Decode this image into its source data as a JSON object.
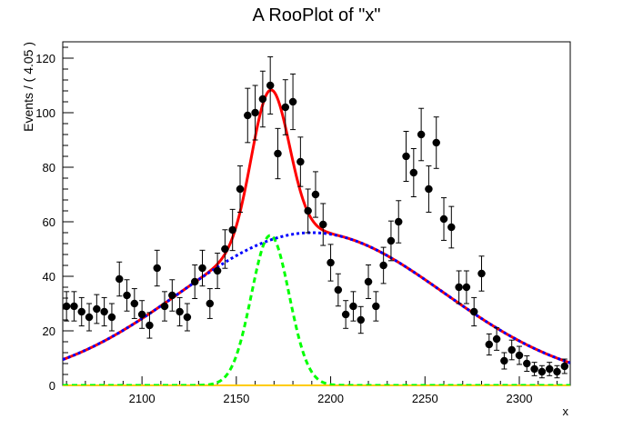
{
  "chart_data": {
    "type": "scatter",
    "title": "A RooPlot of \"x\"",
    "xlabel": "x",
    "ylabel": "Events / ( 4.05 )",
    "xlim": [
      2058,
      2327
    ],
    "ylim": [
      0,
      126
    ],
    "x_ticks": [
      2100,
      2150,
      2200,
      2250,
      2300
    ],
    "y_ticks": [
      0,
      20,
      40,
      60,
      80,
      100,
      120
    ],
    "grid": false,
    "legend": "none",
    "points": {
      "x": [
        2060,
        2064,
        2068,
        2072,
        2076,
        2080,
        2084,
        2088,
        2092,
        2096,
        2100,
        2104,
        2108,
        2112,
        2116,
        2120,
        2124,
        2128,
        2132,
        2136,
        2140,
        2144,
        2148,
        2152,
        2156,
        2160,
        2164,
        2168,
        2172,
        2176,
        2180,
        2184,
        2188,
        2192,
        2196,
        2200,
        2204,
        2208,
        2212,
        2216,
        2220,
        2224,
        2228,
        2232,
        2236,
        2240,
        2244,
        2248,
        2252,
        2256,
        2260,
        2264,
        2268,
        2272,
        2276,
        2280,
        2284,
        2288,
        2292,
        2296,
        2300,
        2304,
        2308,
        2312,
        2316,
        2320,
        2324
      ],
      "y": [
        29,
        29,
        27,
        25,
        28,
        27,
        25,
        39,
        33,
        30,
        26,
        22,
        43,
        29,
        33,
        27,
        25,
        38,
        43,
        30,
        42,
        50,
        57,
        72,
        99,
        100,
        105,
        110,
        85,
        102,
        104,
        82,
        64,
        70,
        59,
        45,
        35,
        26,
        29,
        24,
        38,
        29,
        44,
        53,
        60,
        84,
        78,
        92,
        72,
        89,
        61,
        58,
        36,
        36,
        27,
        41,
        15,
        17,
        9,
        13,
        11,
        8,
        6,
        5,
        6,
        5,
        7
      ]
    },
    "series": [
      {
        "name": "total",
        "color": "#ff0000",
        "style": "solid",
        "mean": 2168,
        "sigma": 10,
        "sig_amp": 55,
        "bkg_mean": 2190,
        "bkg_sigma": 70,
        "bkg_amp": 56
      },
      {
        "name": "background",
        "color": "#0000ff",
        "style": "dotted",
        "mean": 2190,
        "sigma": 70,
        "amp": 56
      },
      {
        "name": "signal",
        "color": "#00ff00",
        "style": "dashed",
        "mean": 2168,
        "sigma": 10,
        "amp": 55
      },
      {
        "name": "baseline",
        "color": "#ffcc00",
        "style": "solid",
        "value": 0
      }
    ]
  }
}
